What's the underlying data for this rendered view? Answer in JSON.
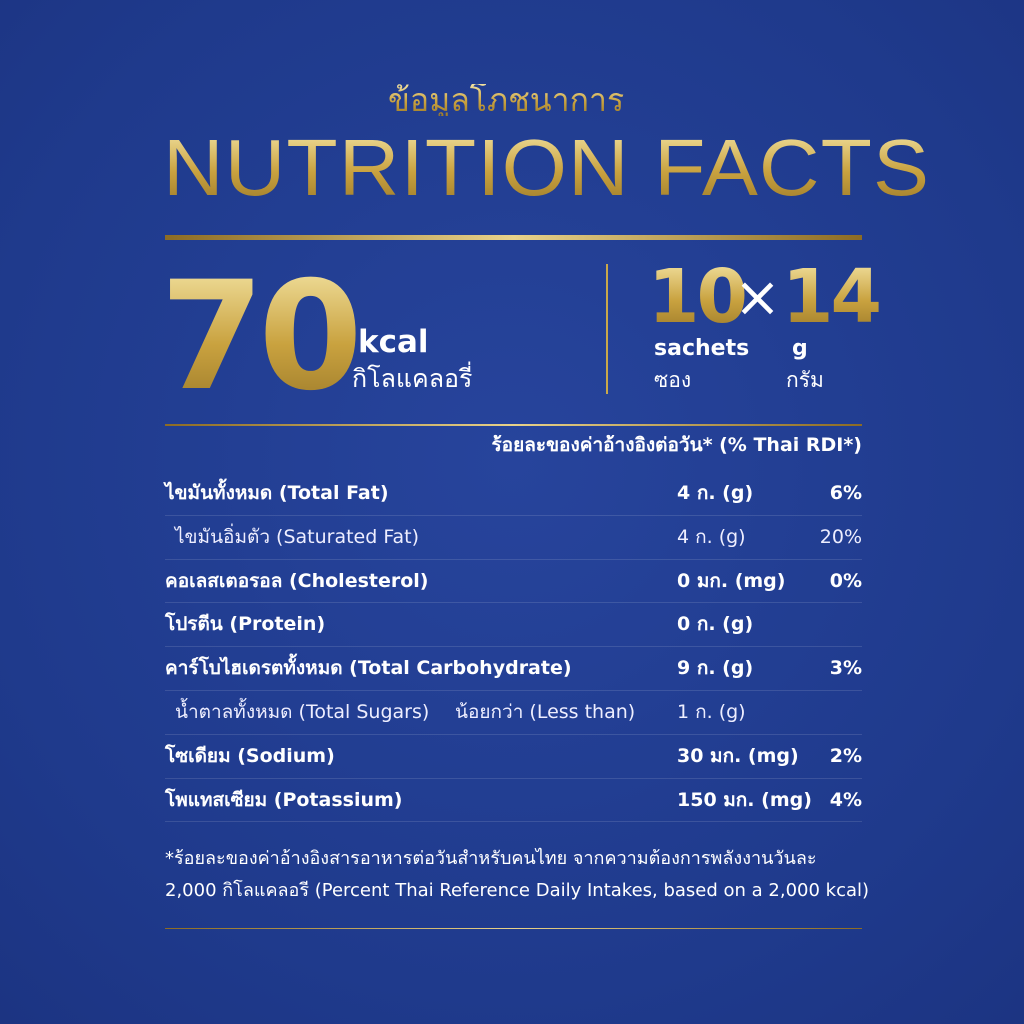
{
  "header": {
    "thai_title": "ข้อมูลโภชนาการ",
    "title": "NUTRITION FACTS"
  },
  "energy": {
    "value": 70,
    "unit": "kcal",
    "unit_thai": "กิโลแคลอรี่"
  },
  "pack": {
    "count": 10,
    "symbol": "×",
    "weight": 14,
    "count_unit": "sachets",
    "weight_unit": "g",
    "count_unit_thai": "ซอง",
    "weight_unit_thai": "กรัม"
  },
  "table": {
    "header": "ร้อยละของค่าอ้างอิงต่อวัน* (% Thai RDI*)",
    "rows": [
      {
        "label": "ไขมันทั้งหมด (Total Fat)",
        "amount": "4 ก. (g)",
        "rdi": "6%",
        "sub_rows": [
          {
            "label": "ไขมันอิ่มตัว (Saturated Fat)",
            "amount": "4 ก. (g)",
            "rdi": "20%"
          }
        ]
      },
      {
        "label": "คอเลสเตอรอล (Cholesterol)",
        "amount": "0 มก. (mg)",
        "rdi": "0%"
      },
      {
        "label": "โปรตีน (Protein)",
        "amount": "0 ก. (g)"
      },
      {
        "label": "คาร์โบไฮเดรตทั้งหมด (Total Carbohydrate)",
        "amount": "9 ก. (g)",
        "rdi": "3%",
        "sub_rows": [
          {
            "label": "น้ำตาลทั้งหมด (Total Sugars)",
            "qualifier": "น้อยกว่า (Less than)",
            "amount": "1 ก. (g)"
          }
        ]
      },
      {
        "label": "โซเดียม (Sodium)",
        "amount": "30 มก. (mg)",
        "rdi": "2%"
      },
      {
        "label": "โพแทสเซียม (Potassium)",
        "amount": "150 มก. (mg)",
        "rdi": "4%"
      }
    ]
  },
  "footnote": [
    "*ร้อยละของค่าอ้างอิงสารอาหารต่อวันสำหรับคนไทย จากความต้องการพลังงานวันละ",
    "2,000 กิโลแคลอรี (Percent Thai Reference Daily Intakes, based on a 2,000 kcal)"
  ]
}
